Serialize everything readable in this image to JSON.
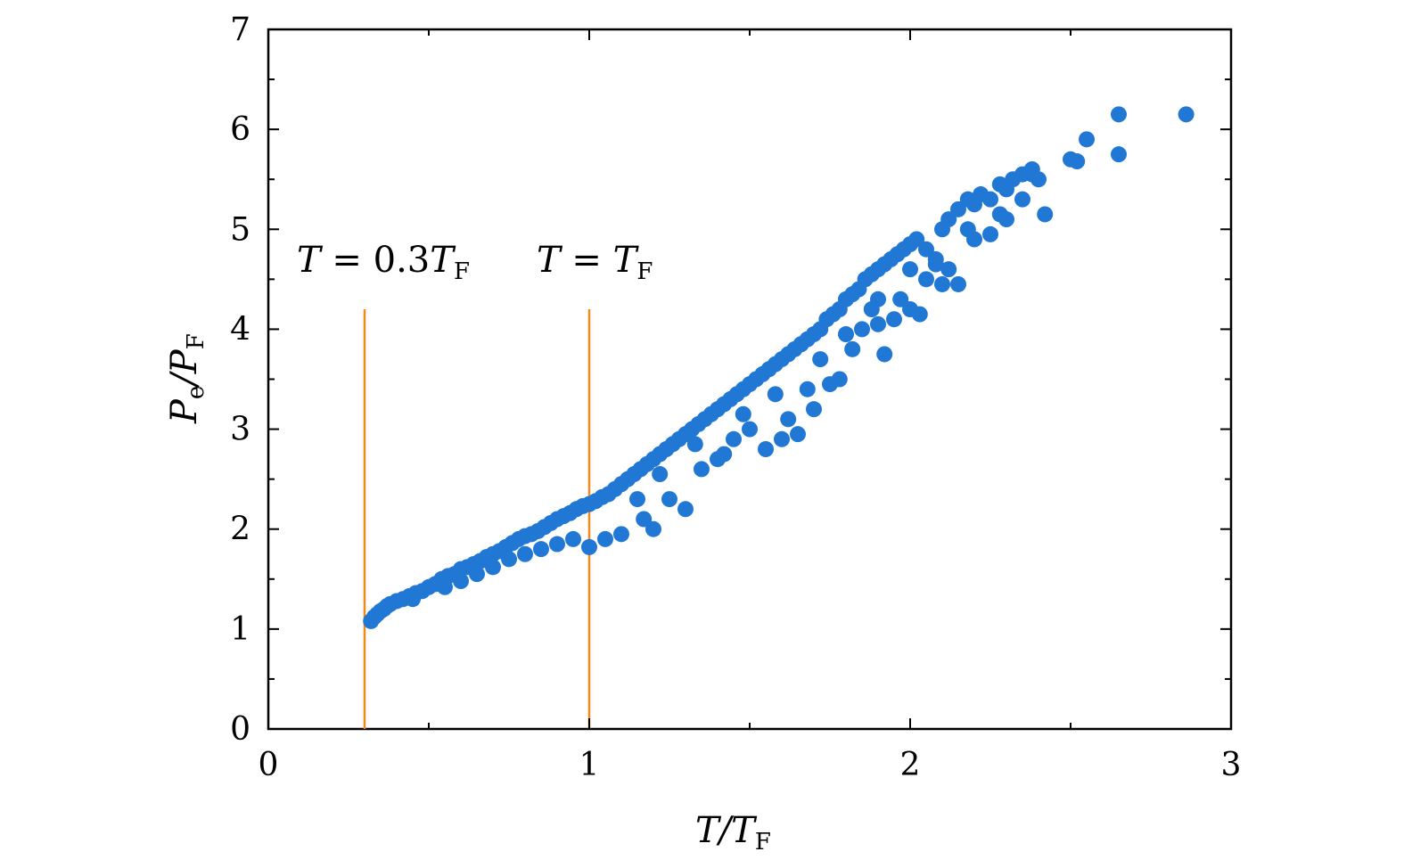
{
  "chart_data": {
    "type": "scatter",
    "xlabel": {
      "main": "T/T",
      "sub": "F"
    },
    "ylabel": {
      "main": "P",
      "sub_e": "e",
      "slash": "/P",
      "sub_f": "F"
    },
    "xlim": [
      0,
      3
    ],
    "ylim": [
      0,
      7
    ],
    "x_ticks": [
      "0",
      "1",
      "2",
      "3"
    ],
    "y_ticks": [
      "0",
      "1",
      "2",
      "3",
      "4",
      "5",
      "6",
      "7"
    ],
    "grid": false,
    "marker_color": "#2078d4",
    "line_color": "#f08a1c",
    "vlines": [
      {
        "x": 0.3,
        "y_range": [
          0,
          4.2
        ],
        "label_pre": "T",
        "label_mid": " = 0.3",
        "label_var": "T",
        "label_sub": "F"
      },
      {
        "x": 1.0,
        "y_range": [
          0,
          4.2
        ],
        "label_pre": "T",
        "label_mid": " = ",
        "label_var": "T",
        "label_sub": "F"
      }
    ],
    "trend": {
      "x_start": 0.32,
      "x_end": 2.65,
      "y_at": "approx 1.1 at 0.32 rising to ~6 at 2.65"
    },
    "points": [
      [
        0.32,
        1.08
      ],
      [
        0.33,
        1.12
      ],
      [
        0.34,
        1.15
      ],
      [
        0.35,
        1.18
      ],
      [
        0.36,
        1.2
      ],
      [
        0.37,
        1.23
      ],
      [
        0.38,
        1.25
      ],
      [
        0.4,
        1.28
      ],
      [
        0.42,
        1.3
      ],
      [
        0.44,
        1.33
      ],
      [
        0.46,
        1.36
      ],
      [
        0.48,
        1.38
      ],
      [
        0.5,
        1.42
      ],
      [
        0.52,
        1.45
      ],
      [
        0.54,
        1.5
      ],
      [
        0.56,
        1.53
      ],
      [
        0.58,
        1.55
      ],
      [
        0.6,
        1.6
      ],
      [
        0.62,
        1.62
      ],
      [
        0.64,
        1.65
      ],
      [
        0.66,
        1.68
      ],
      [
        0.68,
        1.72
      ],
      [
        0.7,
        1.75
      ],
      [
        0.72,
        1.78
      ],
      [
        0.74,
        1.82
      ],
      [
        0.76,
        1.86
      ],
      [
        0.78,
        1.9
      ],
      [
        0.8,
        1.93
      ],
      [
        0.82,
        1.95
      ],
      [
        0.84,
        1.98
      ],
      [
        0.86,
        2.02
      ],
      [
        0.88,
        2.06
      ],
      [
        0.9,
        2.1
      ],
      [
        0.92,
        2.13
      ],
      [
        0.94,
        2.16
      ],
      [
        0.96,
        2.2
      ],
      [
        0.98,
        2.23
      ],
      [
        1.0,
        2.25
      ],
      [
        1.02,
        2.28
      ],
      [
        1.04,
        2.32
      ],
      [
        1.06,
        2.35
      ],
      [
        1.08,
        2.4
      ],
      [
        1.1,
        2.45
      ],
      [
        1.12,
        2.5
      ],
      [
        1.14,
        2.55
      ],
      [
        1.16,
        2.6
      ],
      [
        1.18,
        2.65
      ],
      [
        1.2,
        2.7
      ],
      [
        1.22,
        2.75
      ],
      [
        1.24,
        2.8
      ],
      [
        1.26,
        2.85
      ],
      [
        1.28,
        2.9
      ],
      [
        1.3,
        2.95
      ],
      [
        1.32,
        3.0
      ],
      [
        1.34,
        3.05
      ],
      [
        1.36,
        3.1
      ],
      [
        1.38,
        3.15
      ],
      [
        1.4,
        3.2
      ],
      [
        1.42,
        3.25
      ],
      [
        1.44,
        3.3
      ],
      [
        1.46,
        3.35
      ],
      [
        1.48,
        3.4
      ],
      [
        1.5,
        3.45
      ],
      [
        1.52,
        3.5
      ],
      [
        1.54,
        3.55
      ],
      [
        1.56,
        3.6
      ],
      [
        1.58,
        3.65
      ],
      [
        1.6,
        3.7
      ],
      [
        1.62,
        3.75
      ],
      [
        1.64,
        3.8
      ],
      [
        1.66,
        3.85
      ],
      [
        1.68,
        3.9
      ],
      [
        1.7,
        3.95
      ],
      [
        1.72,
        4.0
      ],
      [
        1.74,
        4.1
      ],
      [
        1.76,
        4.15
      ],
      [
        1.78,
        4.2
      ],
      [
        1.8,
        4.3
      ],
      [
        1.82,
        4.35
      ],
      [
        1.84,
        4.4
      ],
      [
        1.86,
        4.5
      ],
      [
        1.88,
        4.55
      ],
      [
        1.9,
        4.6
      ],
      [
        1.92,
        4.65
      ],
      [
        1.94,
        4.7
      ],
      [
        1.96,
        4.75
      ],
      [
        1.98,
        4.8
      ],
      [
        2.0,
        4.85
      ],
      [
        2.02,
        4.9
      ],
      [
        2.05,
        4.8
      ],
      [
        2.08,
        4.7
      ],
      [
        2.1,
        5.0
      ],
      [
        2.12,
        5.1
      ],
      [
        2.15,
        5.2
      ],
      [
        2.18,
        5.3
      ],
      [
        2.2,
        5.25
      ],
      [
        2.22,
        5.35
      ],
      [
        2.25,
        5.3
      ],
      [
        2.28,
        5.45
      ],
      [
        2.3,
        5.4
      ],
      [
        2.32,
        5.5
      ],
      [
        2.35,
        5.55
      ],
      [
        2.38,
        5.6
      ],
      [
        2.4,
        5.5
      ],
      [
        2.42,
        5.15
      ],
      [
        2.5,
        5.7
      ],
      [
        2.52,
        5.68
      ],
      [
        2.55,
        5.9
      ],
      [
        2.65,
        6.15
      ],
      [
        2.65,
        5.75
      ],
      [
        2.86,
        6.15
      ],
      [
        0.9,
        1.85
      ],
      [
        0.95,
        1.9
      ],
      [
        1.0,
        1.82
      ],
      [
        1.05,
        1.9
      ],
      [
        1.1,
        1.95
      ],
      [
        1.2,
        2.0
      ],
      [
        1.17,
        2.1
      ],
      [
        1.3,
        2.2
      ],
      [
        1.4,
        2.7
      ],
      [
        1.45,
        2.9
      ],
      [
        1.5,
        3.0
      ],
      [
        1.55,
        2.8
      ],
      [
        1.6,
        2.9
      ],
      [
        1.65,
        2.95
      ],
      [
        1.7,
        3.2
      ],
      [
        1.75,
        3.45
      ],
      [
        1.78,
        3.5
      ],
      [
        1.82,
        3.8
      ],
      [
        1.85,
        4.0
      ],
      [
        1.9,
        4.05
      ],
      [
        1.92,
        3.75
      ],
      [
        1.95,
        4.1
      ],
      [
        2.0,
        4.2
      ],
      [
        2.03,
        4.15
      ],
      [
        2.05,
        4.5
      ],
      [
        2.1,
        4.45
      ],
      [
        2.15,
        4.45
      ],
      [
        2.2,
        4.9
      ],
      [
        2.25,
        4.95
      ],
      [
        2.3,
        5.1
      ],
      [
        0.8,
        1.75
      ],
      [
        0.85,
        1.8
      ],
      [
        1.25,
        2.3
      ],
      [
        1.35,
        2.6
      ],
      [
        1.42,
        2.75
      ],
      [
        1.62,
        3.1
      ],
      [
        1.68,
        3.4
      ],
      [
        1.88,
        4.2
      ],
      [
        1.97,
        4.3
      ],
      [
        2.12,
        4.6
      ],
      [
        0.55,
        1.42
      ],
      [
        0.6,
        1.48
      ],
      [
        0.65,
        1.55
      ],
      [
        0.7,
        1.62
      ],
      [
        0.75,
        1.7
      ],
      [
        1.15,
        2.3
      ],
      [
        1.22,
        2.55
      ],
      [
        1.33,
        2.85
      ],
      [
        1.48,
        3.15
      ],
      [
        1.58,
        3.35
      ],
      [
        1.72,
        3.7
      ],
      [
        1.8,
        3.95
      ],
      [
        1.9,
        4.3
      ],
      [
        2.0,
        4.6
      ],
      [
        2.08,
        4.65
      ],
      [
        2.18,
        5.0
      ],
      [
        2.28,
        5.15
      ],
      [
        2.35,
        5.3
      ],
      [
        2.38,
        5.55
      ],
      [
        0.45,
        1.3
      ]
    ]
  }
}
